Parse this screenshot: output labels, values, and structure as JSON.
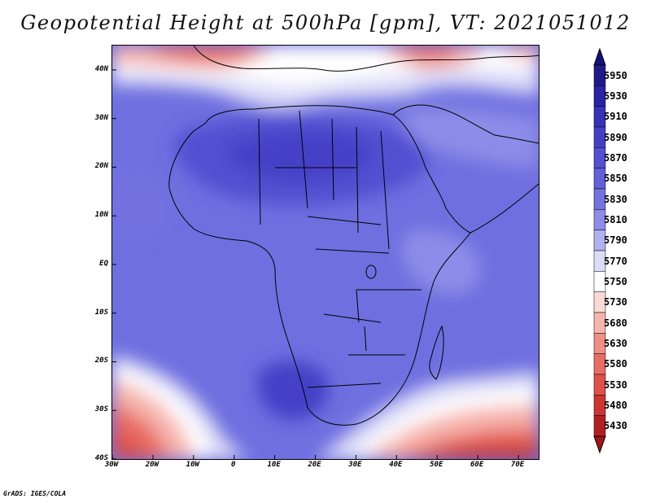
{
  "title": "Geopotential Height at 500hPa [gpm], VT: 2021051012",
  "footer": "GrADS: IGES/COLA",
  "map": {
    "lat_range": [
      -40,
      45
    ],
    "lon_range": [
      -30,
      75
    ],
    "lat_labels": [
      {
        "lat": 40,
        "text": "40N"
      },
      {
        "lat": 30,
        "text": "30N"
      },
      {
        "lat": 20,
        "text": "20N"
      },
      {
        "lat": 10,
        "text": "10N"
      },
      {
        "lat": 0,
        "text": "EQ"
      },
      {
        "lat": -10,
        "text": "10S"
      },
      {
        "lat": -20,
        "text": "20S"
      },
      {
        "lat": -30,
        "text": "30S"
      },
      {
        "lat": -40,
        "text": "40S"
      }
    ],
    "lon_labels": [
      {
        "lon": -30,
        "text": "30W"
      },
      {
        "lon": -20,
        "text": "20W"
      },
      {
        "lon": -10,
        "text": "10W"
      },
      {
        "lon": 0,
        "text": "0"
      },
      {
        "lon": 10,
        "text": "10E"
      },
      {
        "lon": 20,
        "text": "20E"
      },
      {
        "lon": 30,
        "text": "30E"
      },
      {
        "lon": 40,
        "text": "40E"
      },
      {
        "lon": 50,
        "text": "50E"
      },
      {
        "lon": 60,
        "text": "60E"
      },
      {
        "lon": 70,
        "text": "70E"
      }
    ]
  },
  "colorbar": {
    "levels": [
      {
        "value": "5950",
        "color": "#1f1a8c"
      },
      {
        "value": "5930",
        "color": "#2a23a6"
      },
      {
        "value": "5910",
        "color": "#3732b8"
      },
      {
        "value": "5890",
        "color": "#4440c6"
      },
      {
        "value": "5870",
        "color": "#524fd1"
      },
      {
        "value": "5850",
        "color": "#615fd9"
      },
      {
        "value": "5830",
        "color": "#7472e0"
      },
      {
        "value": "5810",
        "color": "#8d8ce8"
      },
      {
        "value": "5790",
        "color": "#b1b0f1"
      },
      {
        "value": "5770",
        "color": "#dcdcf8"
      },
      {
        "value": "5750",
        "color": "#ffffff"
      },
      {
        "value": "5730",
        "color": "#fbdad6"
      },
      {
        "value": "5680",
        "color": "#f6b4ad"
      },
      {
        "value": "5630",
        "color": "#f08f87"
      },
      {
        "value": "5580",
        "color": "#e86d65"
      },
      {
        "value": "5530",
        "color": "#df5048"
      },
      {
        "value": "5480",
        "color": "#cc3530"
      },
      {
        "value": "5430",
        "color": "#b22020"
      }
    ],
    "top_color": "#14107a",
    "bottom_color": "#a01515"
  }
}
